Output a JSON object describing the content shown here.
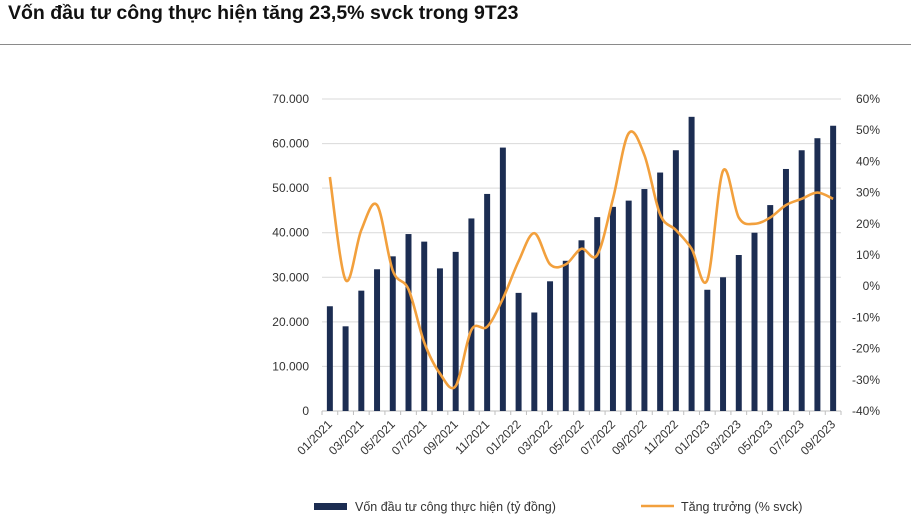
{
  "title": "Vốn đầu tư công thực hiện tăng 23,5% svck trong 9T23",
  "colors": {
    "bar": "#1c2d52",
    "line": "#f2a03d",
    "grid": "#d9d9d9",
    "rule": "#8a8a8a"
  },
  "chart_data": {
    "type": "bar+line",
    "categories": [
      "01/2021",
      "02/2021",
      "03/2021",
      "04/2021",
      "05/2021",
      "06/2021",
      "07/2021",
      "08/2021",
      "09/2021",
      "10/2021",
      "11/2021",
      "12/2021",
      "01/2022",
      "02/2022",
      "03/2022",
      "04/2022",
      "05/2022",
      "06/2022",
      "07/2022",
      "08/2022",
      "09/2022",
      "10/2022",
      "11/2022",
      "12/2022",
      "01/2023",
      "02/2023",
      "03/2023",
      "04/2023",
      "05/2023",
      "06/2023",
      "07/2023",
      "08/2023",
      "09/2023"
    ],
    "x_tick_labels": [
      "01/2021",
      "03/2021",
      "05/2021",
      "07/2021",
      "09/2021",
      "11/2021",
      "01/2022",
      "03/2022",
      "05/2022",
      "07/2022",
      "09/2022",
      "11/2022",
      "01/2023",
      "03/2023",
      "05/2023",
      "07/2023",
      "09/2023"
    ],
    "left_axis": {
      "ticks": [
        "0",
        "10.000",
        "20.000",
        "30.000",
        "40.000",
        "50.000",
        "60.000",
        "70.000"
      ],
      "ylim": [
        0,
        70000
      ]
    },
    "right_axis": {
      "ticks": [
        "-40%",
        "-30%",
        "-20%",
        "-10%",
        "0%",
        "10%",
        "20%",
        "30%",
        "40%",
        "50%",
        "60%"
      ],
      "ylim": [
        -40,
        60
      ]
    },
    "series": [
      {
        "name": "Vốn đầu tư công thực hiện (tỷ đồng)",
        "type": "bar",
        "axis": "left",
        "values": [
          23500,
          19000,
          27000,
          31800,
          34700,
          39700,
          38000,
          32000,
          35700,
          43200,
          48700,
          59100,
          26500,
          22100,
          29100,
          33700,
          38300,
          43500,
          45800,
          47200,
          49800,
          53500,
          58500,
          66000,
          27200,
          30000,
          35000,
          40000,
          46200,
          54300,
          58500,
          61200,
          64000
        ]
      },
      {
        "name": "Tăng trưởng (% svck)",
        "type": "line",
        "axis": "right",
        "values": [
          35,
          2,
          18,
          26,
          5,
          -1,
          -18,
          -28,
          -32,
          -14,
          -13,
          -4,
          8,
          17,
          7,
          7,
          12,
          10,
          28,
          49,
          42,
          23,
          18,
          12,
          2,
          37,
          22,
          20,
          22,
          26,
          28,
          30,
          28
        ]
      }
    ]
  }
}
